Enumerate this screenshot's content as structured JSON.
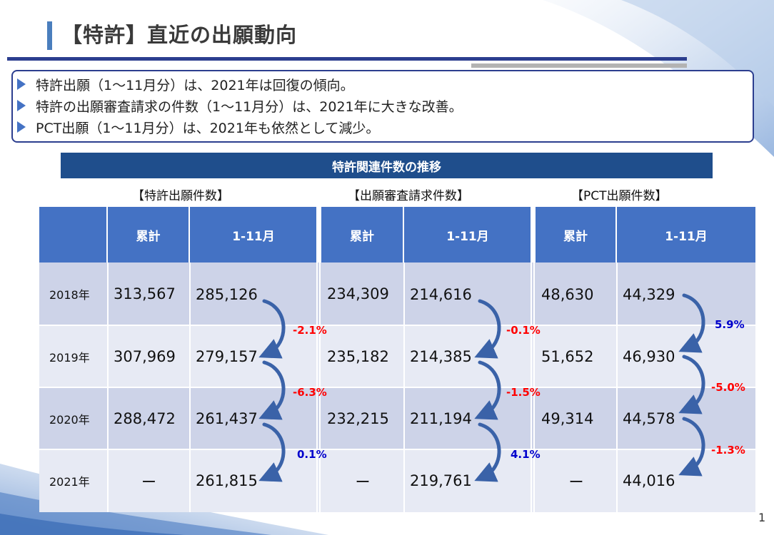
{
  "title": "【特許】直近の出願動向",
  "bullets": [
    "特許出願（1～11月分）は、2021年は回復の傾向。",
    "特許の出願審査請求の件数（1～11月分）は、2021年に大きな改善。",
    "PCT出願（1～11月分）は、2021年も依然として減少。"
  ],
  "section_title": "特許関連件数の推移",
  "groups": [
    "【特許出願件数】",
    "【出願審査請求件数】",
    "【PCT出願件数】"
  ],
  "headers": [
    "累計",
    "1-11月",
    "累計",
    "1-11月",
    "累計",
    "1-11月"
  ],
  "rows": [
    {
      "year": "2018年",
      "cells": [
        "313,567",
        "285,126",
        "234,309",
        "214,616",
        "48,630",
        "44,329"
      ]
    },
    {
      "year": "2019年",
      "cells": [
        "307,969",
        "279,157",
        "235,182",
        "214,385",
        "51,652",
        "46,930"
      ]
    },
    {
      "year": "2020年",
      "cells": [
        "288,472",
        "261,437",
        "232,215",
        "211,194",
        "49,314",
        "44,578"
      ]
    },
    {
      "year": "2021年",
      "cells": [
        "ー",
        "261,815",
        "ー",
        "219,761",
        "ー",
        "44,016"
      ]
    }
  ],
  "changes": {
    "patent": [
      "-2.1%",
      "-6.3%",
      "0.1%"
    ],
    "exam": [
      "-0.1%",
      "-1.5%",
      "4.1%"
    ],
    "pct": [
      "5.9%",
      "-5.0%",
      "-1.3%"
    ]
  },
  "colors": {
    "accent": "#2c3e8f",
    "header": "#4472c4",
    "section": "#1f4e8c",
    "negative": "#ff0000",
    "positive": "#0000cc"
  },
  "page_number": "1"
}
